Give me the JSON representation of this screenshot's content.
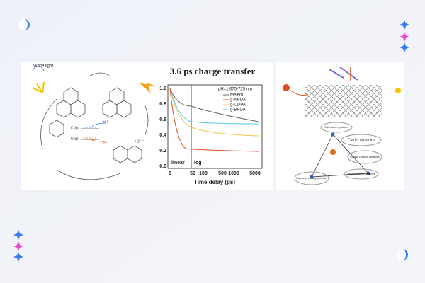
{
  "figure_left": {
    "diagram": {
      "light": "White light",
      "et": "ET",
      "ht": "HT",
      "c2p": "C 2p",
      "n2p": "N 2p",
      "proton": "+ 2H⁺"
    },
    "plot": {
      "title": "3.6 ps charge transfer",
      "x_label": "Time delay (ps)",
      "condition": "pH=1 675-725 nm",
      "legend": [
        "Melem",
        "g-NPDA",
        "g-ODPA",
        "g-BPDA"
      ],
      "regions": [
        "linear",
        "log"
      ],
      "x_ticks": [
        "0",
        "50",
        "100",
        "500",
        "1000",
        "5000"
      ],
      "y_ticks": [
        "1.0",
        "0.8",
        "0.6",
        "0.4",
        "0.2",
        "0.0"
      ]
    }
  },
  "figure_right": {
    "labels": [
      "Carrier dynamics",
      "Total carrier dynamics",
      "Surface reaction dynamics",
      "Recombination dynamics",
      "Hot carrier cooling dynamics"
    ]
  }
}
